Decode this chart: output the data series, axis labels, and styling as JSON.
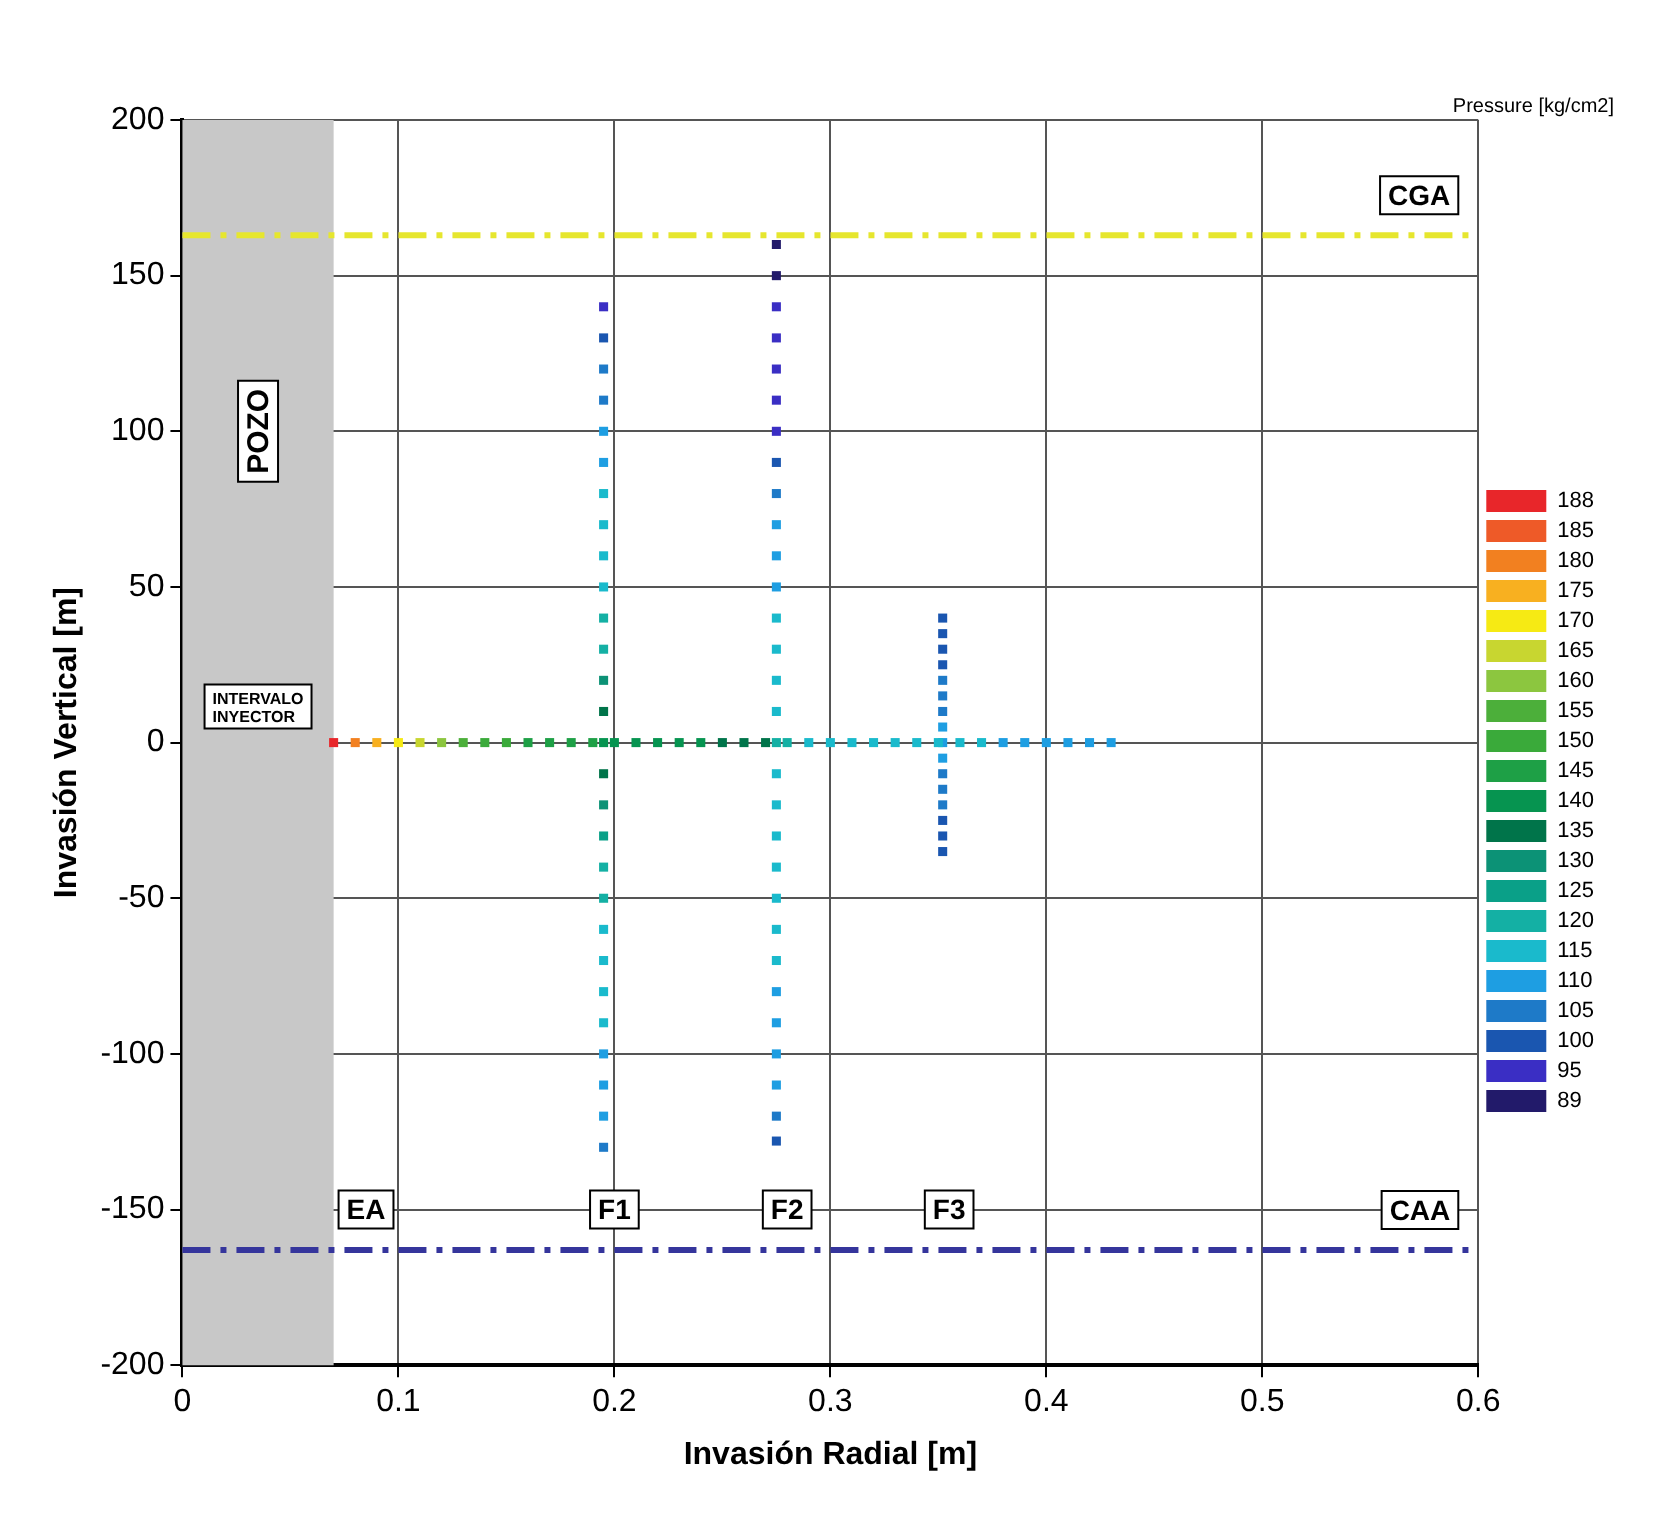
{
  "chart_data": {
    "type": "scatter",
    "xlabel": "Invasión Radial [m]",
    "ylabel": "Invasión Vertical [m]",
    "legend_title": "Pressure [kg/cm2]",
    "xlim": [
      0,
      0.6
    ],
    "xticks": [
      0,
      0.1,
      0.2,
      0.3,
      0.4,
      0.5,
      0.6
    ],
    "ylim": [
      -200,
      200
    ],
    "yticks": [
      -200,
      -150,
      -100,
      -50,
      0,
      50,
      100,
      150,
      200
    ],
    "grid": true,
    "legend": "right",
    "marker": "square",
    "series": [
      {
        "name": "188",
        "color": "#e8262a",
        "x": [
          0.07
        ],
        "values": [
          0
        ]
      },
      {
        "name": "185",
        "color": "#ee5a28"
      },
      {
        "name": "180",
        "color": "#f28020",
        "x": [
          0.08
        ],
        "values": [
          0
        ]
      },
      {
        "name": "175",
        "color": "#f8b020",
        "x": [
          0.09
        ],
        "values": [
          0
        ]
      },
      {
        "name": "170",
        "color": "#f6ea14",
        "x": [
          0.1
        ],
        "values": [
          0
        ]
      },
      {
        "name": "165",
        "color": "#c8d630",
        "x": [
          0.11
        ],
        "values": [
          0
        ]
      },
      {
        "name": "160",
        "color": "#8cc63f",
        "x": [
          0.12
        ],
        "values": [
          0
        ]
      },
      {
        "name": "155",
        "color": "#4caf3a",
        "x": [
          0.13
        ],
        "values": [
          0
        ]
      },
      {
        "name": "150",
        "color": "#3aaa3a",
        "x": [
          0.14,
          0.15
        ],
        "values": [
          0,
          0
        ]
      },
      {
        "name": "145",
        "color": "#1ea046",
        "x": [
          0.16,
          0.17,
          0.18,
          0.19
        ],
        "values": [
          0,
          0,
          0,
          0
        ]
      },
      {
        "name": "140",
        "color": "#069450",
        "x": [
          0.2,
          0.21,
          0.22,
          0.23,
          0.24,
          0.195
        ],
        "values": [
          0,
          0,
          0,
          0,
          0,
          0
        ]
      },
      {
        "name": "135",
        "color": "#00744a",
        "x": [
          0.25,
          0.26,
          0.27,
          0.195,
          0.195
        ],
        "values": [
          0,
          0,
          0,
          -10,
          10
        ]
      },
      {
        "name": "130",
        "color": "#0c9276",
        "x": [
          0.195,
          0.195
        ],
        "values": [
          -20,
          20
        ]
      },
      {
        "name": "125",
        "color": "#0aa088",
        "x": [
          0.195
        ],
        "values": [
          -30
        ]
      },
      {
        "name": "120",
        "color": "#14b0a4",
        "x": [
          0.28,
          0.195,
          0.195,
          0.195,
          0.195,
          0.275
        ],
        "values": [
          0,
          -50,
          -40,
          30,
          40,
          0
        ]
      },
      {
        "name": "115",
        "color": "#1abacc",
        "x": [
          0.29,
          0.3,
          0.31,
          0.32,
          0.33,
          0.34,
          0.35,
          0.36,
          0.37,
          0.195,
          0.195,
          0.195,
          0.195,
          0.195,
          0.195,
          0.195,
          0.195,
          0.275,
          0.275,
          0.275,
          0.275,
          0.275,
          0.275,
          0.275,
          0.275,
          0.275,
          0.275,
          0.275
        ],
        "values": [
          0,
          0,
          0,
          0,
          0,
          0,
          0,
          0,
          0,
          -90,
          -80,
          -70,
          -60,
          50,
          60,
          70,
          80,
          -70,
          -60,
          -50,
          -40,
          -30,
          -20,
          -10,
          10,
          20,
          30,
          40
        ]
      },
      {
        "name": "110",
        "color": "#1e9ee2",
        "x": [
          0.38,
          0.39,
          0.4,
          0.41,
          0.42,
          0.43,
          0.195,
          0.195,
          0.195,
          0.195,
          0.195,
          0.275,
          0.275,
          0.275,
          0.275,
          0.275,
          0.275,
          0.275,
          0.352,
          0.352,
          0.352
        ],
        "values": [
          0,
          0,
          0,
          0,
          0,
          0,
          -120,
          -110,
          -100,
          90,
          100,
          -110,
          -100,
          -90,
          -80,
          50,
          60,
          70,
          -5,
          0,
          5
        ]
      },
      {
        "name": "105",
        "color": "#1e7ac8",
        "x": [
          0.195,
          0.195,
          0.195,
          0.275,
          0.275,
          0.352,
          0.352,
          0.352,
          0.352,
          0.352,
          0.352
        ],
        "values": [
          -130,
          110,
          120,
          -120,
          80,
          -20,
          -15,
          -10,
          10,
          15,
          20
        ]
      },
      {
        "name": "100",
        "color": "#1a56b0",
        "x": [
          0.195,
          0.275,
          0.275,
          0.352,
          0.352,
          0.352,
          0.352,
          0.352,
          0.352,
          0.352
        ],
        "values": [
          130,
          -128,
          90,
          -35,
          -30,
          -25,
          25,
          30,
          35,
          40
        ]
      },
      {
        "name": "95",
        "color": "#3a2ec4",
        "x": [
          0.195,
          0.275,
          0.275,
          0.275,
          0.275,
          0.275
        ],
        "values": [
          140,
          100,
          110,
          120,
          130,
          140
        ]
      },
      {
        "name": "89",
        "color": "#221a6a",
        "x": [
          0.275,
          0.275
        ],
        "values": [
          150,
          160
        ]
      }
    ],
    "ref_lines": [
      {
        "axis": "y",
        "value": 163,
        "label": "CGA",
        "color": "#e6e62e",
        "line_style": "dashed"
      },
      {
        "axis": "y",
        "value": -163,
        "label": "CAA",
        "color": "#35359c",
        "line_style": "dashed"
      }
    ],
    "bands": [
      {
        "axis": "x",
        "from": 0,
        "to": 0.07,
        "label": "POZO",
        "color": "#c8c8c8"
      }
    ],
    "annotations": [
      {
        "text": "EA",
        "x": 0.085,
        "y": -150
      },
      {
        "text": "F1",
        "x": 0.2,
        "y": -150
      },
      {
        "text": "F2",
        "x": 0.28,
        "y": -150
      },
      {
        "text": "F3",
        "x": 0.355,
        "y": -150
      },
      "INTERVALO INYECTOR"
    ]
  }
}
